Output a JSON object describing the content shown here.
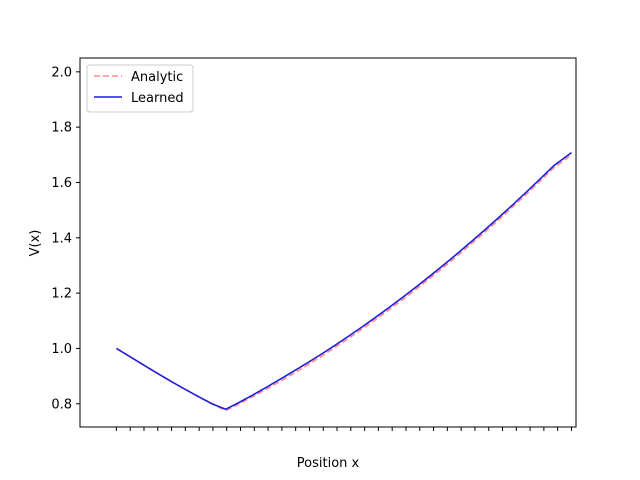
{
  "chart_data": {
    "type": "line",
    "title": "",
    "xlabel": "Position x",
    "ylabel": "V(x)",
    "xlim": [
      -0.08,
      1.01
    ],
    "ylim": [
      0.716,
      2.05
    ],
    "x_tick_count": 34,
    "x_tick_labels_shown": false,
    "y_ticks": [
      0.8,
      1.0,
      1.2,
      1.4,
      1.6,
      1.8,
      2.0
    ],
    "y_tick_labels": [
      "0.8",
      "1.0",
      "1.2",
      "1.4",
      "1.6",
      "1.8",
      "2.0"
    ],
    "grid": false,
    "legend_position": "top-left",
    "series": [
      {
        "name": "Analytic",
        "color": "#ff8c8c",
        "style": "dashed",
        "x": [
          0.0,
          0.03,
          0.06,
          0.09,
          0.12,
          0.15,
          0.18,
          0.21,
          0.24,
          0.27,
          0.3,
          0.33,
          0.36,
          0.39,
          0.42,
          0.45,
          0.48,
          0.51,
          0.54,
          0.57,
          0.6,
          0.63,
          0.66,
          0.69,
          0.72,
          0.75,
          0.78,
          0.81,
          0.84,
          0.87,
          0.9,
          0.93,
          0.96,
          1.0
        ],
        "y": [
          1.0,
          0.97,
          0.94,
          0.91,
          0.881,
          0.853,
          0.826,
          0.8,
          0.775,
          0.8,
          0.826,
          0.853,
          0.881,
          0.91,
          0.94,
          0.971,
          1.003,
          1.036,
          1.07,
          1.105,
          1.141,
          1.178,
          1.216,
          1.255,
          1.295,
          1.336,
          1.378,
          1.421,
          1.465,
          1.51,
          1.556,
          1.603,
          1.651,
          1.7
        ]
      },
      {
        "name": "Learned",
        "color": "#1f1fdd",
        "style": "solid",
        "x": [
          0.0,
          0.03,
          0.06,
          0.09,
          0.12,
          0.15,
          0.18,
          0.21,
          0.24,
          0.27,
          0.3,
          0.33,
          0.36,
          0.39,
          0.42,
          0.45,
          0.48,
          0.51,
          0.54,
          0.57,
          0.6,
          0.63,
          0.66,
          0.69,
          0.72,
          0.75,
          0.78,
          0.81,
          0.84,
          0.87,
          0.9,
          0.93,
          0.96,
          1.0
        ],
        "y": [
          1.0,
          0.97,
          0.94,
          0.91,
          0.881,
          0.853,
          0.826,
          0.8,
          0.78,
          0.805,
          0.832,
          0.86,
          0.889,
          0.918,
          0.948,
          0.979,
          1.011,
          1.044,
          1.078,
          1.113,
          1.149,
          1.186,
          1.224,
          1.263,
          1.303,
          1.344,
          1.386,
          1.429,
          1.473,
          1.518,
          1.564,
          1.611,
          1.659,
          1.708
        ]
      }
    ]
  }
}
